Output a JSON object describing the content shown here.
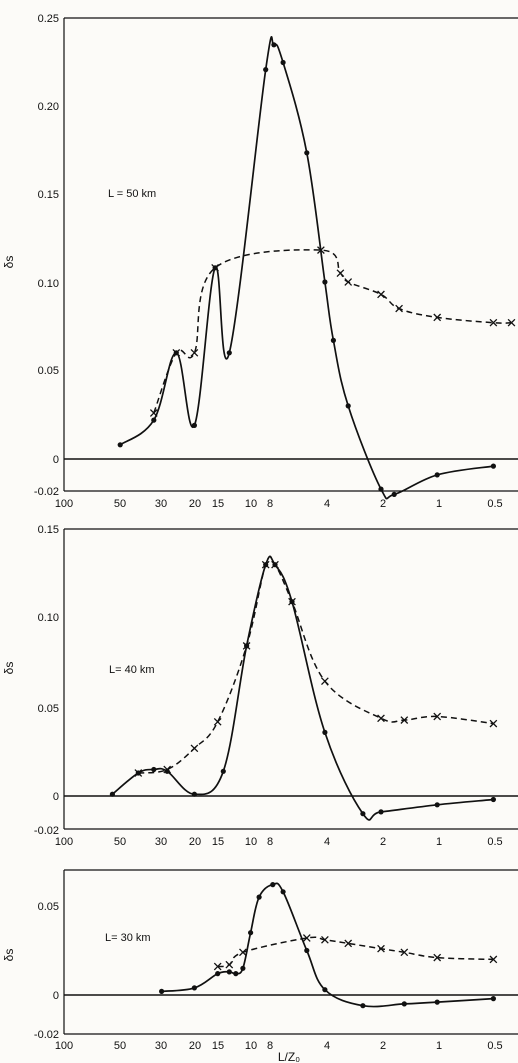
{
  "chart_data": [
    {
      "type": "line",
      "panel_label": "L = 50 km",
      "xlabel": "",
      "ylabel": "δs",
      "x_scale": "log",
      "x_reversed": true,
      "xlim": [
        100,
        0.4
      ],
      "ylim": [
        -0.02,
        0.25
      ],
      "x_tick_labels": [
        "100",
        "50",
        "30",
        "20",
        "15",
        "10",
        "8",
        "4",
        "2",
        "1",
        "0.5"
      ],
      "y_tick_labels": [
        "0.25",
        "0.20",
        "0.15",
        "0.10",
        "0.05",
        "0",
        "-0.02"
      ],
      "series": [
        {
          "style": "solid",
          "marker": "dot",
          "points": [
            [
              50,
              0.008
            ],
            [
              33,
              0.022
            ],
            [
              25,
              0.06
            ],
            [
              20,
              0.019
            ],
            [
              15.5,
              0.108
            ],
            [
              13,
              0.06
            ],
            [
              8.3,
              0.22
            ],
            [
              7.5,
              0.234
            ],
            [
              6.7,
              0.224
            ],
            [
              5,
              0.173
            ],
            [
              4,
              0.1
            ],
            [
              3.6,
              0.067
            ],
            [
              3,
              0.03
            ],
            [
              2,
              -0.017
            ],
            [
              1.7,
              -0.02
            ],
            [
              1,
              -0.009
            ],
            [
              0.5,
              -0.004
            ]
          ]
        },
        {
          "style": "dashed",
          "marker": "cross",
          "points": [
            [
              33,
              0.026
            ],
            [
              25,
              0.06
            ],
            [
              20,
              0.06
            ],
            [
              15.5,
              0.108
            ],
            [
              4.2,
              0.118
            ],
            [
              3.3,
              0.105
            ],
            [
              3,
              0.1
            ],
            [
              2,
              0.093
            ],
            [
              1.6,
              0.085
            ],
            [
              1,
              0.08
            ],
            [
              0.5,
              0.077
            ],
            [
              0.4,
              0.077
            ]
          ]
        }
      ]
    },
    {
      "type": "line",
      "panel_label": "L= 40 km",
      "xlabel": "",
      "ylabel": "δs",
      "x_scale": "log",
      "x_reversed": true,
      "xlim": [
        100,
        0.4
      ],
      "ylim": [
        -0.02,
        0.15
      ],
      "x_tick_labels": [
        "100",
        "50",
        "30",
        "20",
        "15",
        "10",
        "8",
        "4",
        "2",
        "1",
        "0.5"
      ],
      "y_tick_labels": [
        "0.15",
        "0.10",
        "0.05",
        "0",
        "-0.02"
      ],
      "series": [
        {
          "style": "solid",
          "marker": "dot",
          "points": [
            [
              55,
              0.001
            ],
            [
              40,
              0.013
            ],
            [
              33,
              0.015
            ],
            [
              28,
              0.014
            ],
            [
              20,
              0.001
            ],
            [
              14,
              0.014
            ],
            [
              10.5,
              0.085
            ],
            [
              8.3,
              0.131
            ],
            [
              7.4,
              0.131
            ],
            [
              6,
              0.11
            ],
            [
              4,
              0.036
            ],
            [
              2.5,
              -0.01
            ],
            [
              2,
              -0.009
            ],
            [
              1,
              -0.005
            ],
            [
              0.5,
              -0.002
            ]
          ]
        },
        {
          "style": "dashed",
          "marker": "cross",
          "points": [
            [
              40,
              0.013
            ],
            [
              28,
              0.015
            ],
            [
              20,
              0.027
            ],
            [
              15,
              0.042
            ],
            [
              10.5,
              0.085
            ],
            [
              8.3,
              0.131
            ],
            [
              7.4,
              0.131
            ],
            [
              6,
              0.11
            ],
            [
              4,
              0.065
            ],
            [
              2,
              0.044
            ],
            [
              1.5,
              0.043
            ],
            [
              1,
              0.045
            ],
            [
              0.5,
              0.041
            ]
          ]
        }
      ]
    },
    {
      "type": "line",
      "panel_label": "L= 30 km",
      "xlabel": "L/Z₀",
      "ylabel": "δs",
      "x_scale": "log",
      "x_reversed": true,
      "xlim": [
        100,
        0.4
      ],
      "ylim": [
        -0.02,
        0.065
      ],
      "x_tick_labels": [
        "100",
        "50",
        "30",
        "20",
        "15",
        "10",
        "8",
        "4",
        "2",
        "1",
        "0.5"
      ],
      "y_tick_labels": [
        "0.05",
        "0",
        "-0.02"
      ],
      "series": [
        {
          "style": "solid",
          "marker": "dot",
          "points": [
            [
              30,
              0.002
            ],
            [
              20,
              0.004
            ],
            [
              15,
              0.012
            ],
            [
              13,
              0.013
            ],
            [
              12,
              0.012
            ],
            [
              11,
              0.015
            ],
            [
              10,
              0.035
            ],
            [
              9,
              0.055
            ],
            [
              7.6,
              0.062
            ],
            [
              6.7,
              0.058
            ],
            [
              5,
              0.025
            ],
            [
              4,
              0.003
            ],
            [
              2.5,
              -0.006
            ],
            [
              1.5,
              -0.005
            ],
            [
              1,
              -0.004
            ],
            [
              0.5,
              -0.002
            ]
          ]
        },
        {
          "style": "dashed",
          "marker": "cross",
          "points": [
            [
              15,
              0.016
            ],
            [
              13,
              0.017
            ],
            [
              11,
              0.024
            ],
            [
              5,
              0.032
            ],
            [
              4,
              0.031
            ],
            [
              3,
              0.029
            ],
            [
              2,
              0.026
            ],
            [
              1.5,
              0.024
            ],
            [
              1,
              0.021
            ],
            [
              0.5,
              0.02
            ]
          ]
        }
      ]
    }
  ]
}
